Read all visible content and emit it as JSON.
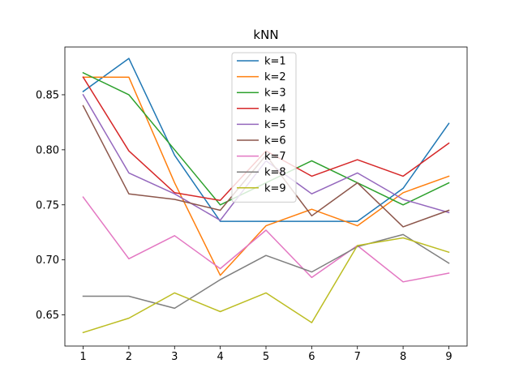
{
  "chart_data": {
    "type": "line",
    "title": "kNN",
    "xlabel": "",
    "ylabel": "",
    "x": [
      1,
      2,
      3,
      4,
      5,
      6,
      7,
      8,
      9
    ],
    "xlim": [
      0.6,
      9.4
    ],
    "ylim": [
      0.6217,
      0.8934
    ],
    "xticks": [
      1,
      2,
      3,
      4,
      5,
      6,
      7,
      8,
      9
    ],
    "yticks": [
      0.65,
      0.7,
      0.75,
      0.8,
      0.85
    ],
    "ytick_labels": [
      "0.65",
      "0.70",
      "0.75",
      "0.80",
      "0.85"
    ],
    "grid": false,
    "legend_position": "upper-center",
    "series": [
      {
        "name": "k=1",
        "color": "#1f77b4",
        "values": [
          0.853,
          0.883,
          0.795,
          0.735,
          0.735,
          0.735,
          0.735,
          0.765,
          0.824
        ]
      },
      {
        "name": "k=2",
        "color": "#ff7f0e",
        "values": [
          0.866,
          0.866,
          0.77,
          0.686,
          0.731,
          0.746,
          0.731,
          0.761,
          0.776
        ]
      },
      {
        "name": "k=3",
        "color": "#2ca02c",
        "values": [
          0.87,
          0.85,
          0.8,
          0.75,
          0.77,
          0.79,
          0.77,
          0.75,
          0.77
        ]
      },
      {
        "name": "k=4",
        "color": "#d62728",
        "values": [
          0.866,
          0.799,
          0.761,
          0.754,
          0.799,
          0.776,
          0.791,
          0.776,
          0.806
        ]
      },
      {
        "name": "k=5",
        "color": "#9467bd",
        "values": [
          0.85,
          0.779,
          0.76,
          0.736,
          0.79,
          0.76,
          0.779,
          0.755,
          0.743
        ]
      },
      {
        "name": "k=6",
        "color": "#8c564b",
        "values": [
          0.84,
          0.76,
          0.755,
          0.745,
          0.795,
          0.74,
          0.77,
          0.73,
          0.745
        ]
      },
      {
        "name": "k=7",
        "color": "#e377c2",
        "values": [
          0.757,
          0.701,
          0.722,
          0.692,
          0.727,
          0.684,
          0.713,
          0.68,
          0.688
        ]
      },
      {
        "name": "k=8",
        "color": "#7f7f7f",
        "values": [
          0.667,
          0.667,
          0.656,
          0.682,
          0.704,
          0.689,
          0.712,
          0.723,
          0.697
        ]
      },
      {
        "name": "k=9",
        "color": "#bcbd22",
        "values": [
          0.634,
          0.647,
          0.67,
          0.653,
          0.67,
          0.643,
          0.713,
          0.72,
          0.707
        ]
      }
    ]
  }
}
